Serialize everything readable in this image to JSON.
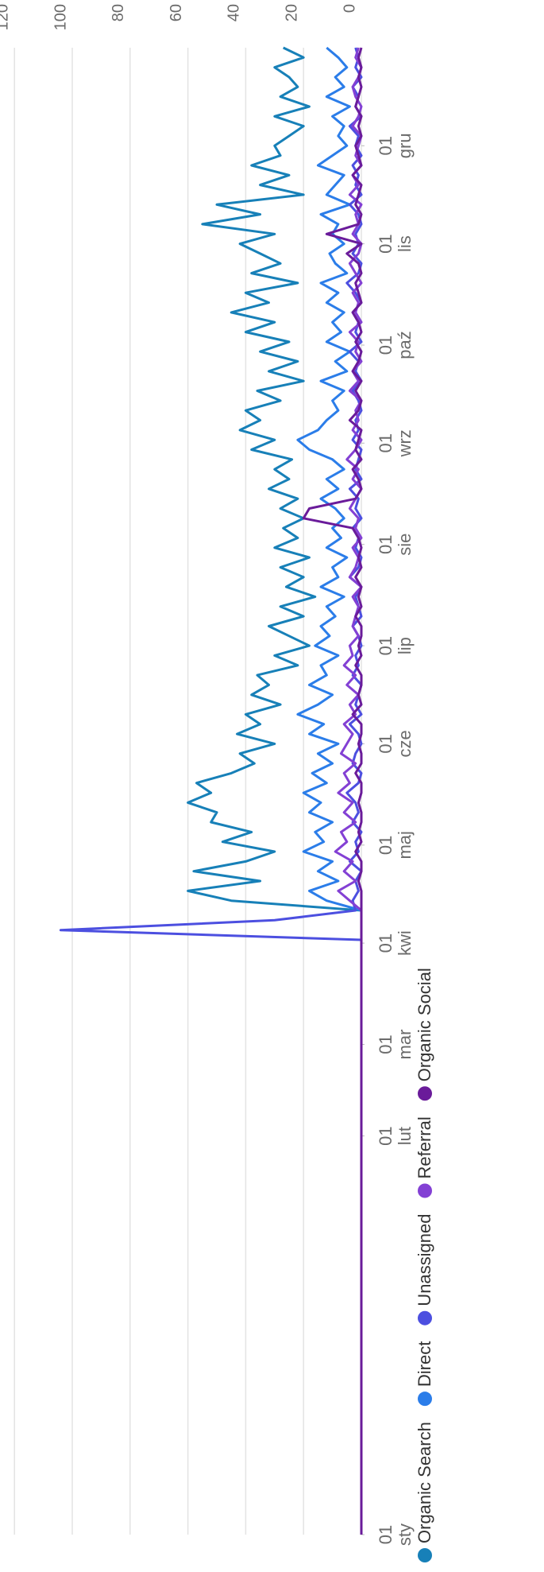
{
  "chart_data": {
    "type": "line",
    "x": [
      0,
      180,
      182,
      185,
      188,
      191,
      194,
      197,
      200,
      203,
      206,
      209,
      212,
      215,
      218,
      221,
      224,
      227,
      230,
      233,
      236,
      239,
      242,
      245,
      248,
      251,
      254,
      257,
      260,
      263,
      266,
      269,
      272,
      275,
      278,
      281,
      284,
      287,
      290,
      293,
      296,
      299,
      302,
      305,
      308,
      311,
      314,
      317,
      320,
      323,
      326,
      329,
      332,
      335,
      338,
      341,
      344,
      347,
      350,
      353,
      356,
      359,
      362,
      365,
      368,
      371,
      374,
      377,
      380,
      383,
      386,
      389,
      392,
      395,
      398,
      401,
      404,
      407,
      410,
      413,
      416,
      419,
      422,
      425,
      428,
      431,
      434,
      437,
      440,
      443,
      446,
      449,
      452,
      455
    ],
    "xlim": [
      0,
      455
    ],
    "xticks": [
      {
        "value": 0,
        "label": "01 sty"
      },
      {
        "value": 122,
        "label": "01 lut"
      },
      {
        "value": 150,
        "label": "01 mar"
      },
      {
        "value": 181,
        "label": "01 kwi"
      },
      {
        "value": 211,
        "label": "01 maj"
      },
      {
        "value": 242,
        "label": "01 cze"
      },
      {
        "value": 272,
        "label": "01 lip"
      },
      {
        "value": 303,
        "label": "01 sie"
      },
      {
        "value": 334,
        "label": "01 wrz"
      },
      {
        "value": 364,
        "label": "01 paź"
      },
      {
        "value": 395,
        "label": "01 lis"
      },
      {
        "value": 425,
        "label": "01 gru"
      }
    ],
    "ylim": [
      0,
      120
    ],
    "yticks": [
      0,
      20,
      40,
      60,
      80,
      100,
      120
    ],
    "grid": true,
    "legend": "bottom",
    "series": [
      {
        "name": "Organic Search",
        "color": "#1780b8",
        "values": [
          0,
          0,
          0,
          0,
          0,
          0,
          45,
          60,
          35,
          58,
          40,
          30,
          48,
          38,
          52,
          50,
          60,
          52,
          57,
          45,
          37,
          42,
          30,
          43,
          35,
          40,
          28,
          38,
          32,
          36,
          22,
          30,
          18,
          25,
          32,
          20,
          28,
          16,
          26,
          20,
          28,
          18,
          30,
          22,
          27,
          20,
          28,
          22,
          32,
          25,
          30,
          24,
          38,
          30,
          42,
          35,
          40,
          28,
          36,
          20,
          32,
          22,
          35,
          25,
          40,
          30,
          45,
          32,
          40,
          22,
          38,
          28,
          35,
          42,
          30,
          55,
          35,
          50,
          20,
          35,
          25,
          38,
          28,
          30,
          25,
          20,
          30,
          18,
          28,
          22,
          25,
          30,
          20,
          27
        ]
      },
      {
        "name": "Direct",
        "color": "#2b7de9",
        "values": [
          0,
          0,
          0,
          0,
          0,
          0,
          12,
          18,
          8,
          15,
          10,
          20,
          13,
          16,
          10,
          18,
          14,
          20,
          12,
          17,
          10,
          15,
          8,
          18,
          13,
          22,
          15,
          10,
          18,
          12,
          14,
          8,
          16,
          11,
          14,
          9,
          12,
          6,
          14,
          8,
          10,
          5,
          12,
          7,
          10,
          6,
          9,
          14,
          8,
          12,
          6,
          10,
          18,
          22,
          15,
          12,
          8,
          10,
          6,
          14,
          5,
          9,
          4,
          12,
          7,
          10,
          6,
          12,
          8,
          14,
          5,
          9,
          11,
          6,
          10,
          8,
          14,
          4,
          12,
          9,
          6,
          15,
          10,
          5,
          8,
          6,
          10,
          4,
          12,
          6,
          9,
          5,
          8,
          12
        ]
      },
      {
        "name": "Unassigned",
        "color": "#4c4fe0",
        "values": [
          0,
          0,
          0,
          104,
          30,
          2,
          3,
          1,
          2,
          0,
          4,
          1,
          2,
          0,
          3,
          1,
          2,
          5,
          1,
          0,
          3,
          2,
          0,
          1,
          4,
          0,
          2,
          1,
          0,
          3,
          1,
          2,
          0,
          1,
          3,
          0,
          1,
          2,
          0,
          4,
          1,
          0,
          2,
          1,
          3,
          0,
          2,
          1,
          4,
          0,
          2,
          1,
          0,
          3,
          1,
          2,
          0,
          1,
          3,
          0,
          2,
          1,
          4,
          0,
          2,
          1,
          3,
          0,
          2,
          5,
          1,
          0,
          3,
          1,
          2,
          0,
          1,
          4,
          0,
          2,
          1,
          3,
          0,
          2,
          1,
          4,
          0,
          2,
          1,
          3,
          0,
          2,
          1,
          2
        ]
      },
      {
        "name": "Referral",
        "color": "#8340d4",
        "values": [
          0,
          0,
          0,
          0,
          0,
          0,
          4,
          8,
          2,
          6,
          3,
          9,
          5,
          7,
          2,
          6,
          3,
          8,
          4,
          6,
          2,
          7,
          5,
          3,
          6,
          2,
          4,
          1,
          5,
          2,
          6,
          3,
          4,
          1,
          3,
          2,
          1,
          3,
          0,
          4,
          2,
          1,
          3,
          0,
          2,
          1,
          4,
          2,
          0,
          3,
          1,
          5,
          2,
          0,
          3,
          1,
          2,
          0,
          4,
          1,
          3,
          0,
          2,
          1,
          4,
          0,
          2,
          1,
          3,
          0,
          2,
          4,
          1,
          0,
          3,
          1,
          2,
          0,
          4,
          1,
          3,
          0,
          2,
          1,
          0,
          3,
          1,
          0,
          2,
          3,
          1,
          0,
          2,
          1
        ]
      },
      {
        "name": "Organic Social",
        "color": "#6a1b9a",
        "values": [
          0,
          0,
          0,
          0,
          0,
          0,
          0,
          0,
          1,
          0,
          0,
          2,
          0,
          1,
          0,
          0,
          1,
          0,
          0,
          2,
          0,
          0,
          1,
          0,
          0,
          3,
          0,
          1,
          0,
          0,
          2,
          0,
          1,
          0,
          0,
          2,
          0,
          1,
          0,
          2,
          0,
          1,
          0,
          1,
          3,
          20,
          18,
          2,
          0,
          1,
          3,
          0,
          2,
          1,
          0,
          4,
          1,
          0,
          2,
          0,
          3,
          1,
          0,
          2,
          0,
          1,
          3,
          0,
          1,
          2,
          0,
          1,
          5,
          0,
          12,
          1,
          0,
          2,
          1,
          0,
          3,
          0,
          1,
          2,
          0,
          1,
          0,
          2,
          1,
          0,
          1,
          0,
          1,
          0
        ]
      }
    ]
  }
}
